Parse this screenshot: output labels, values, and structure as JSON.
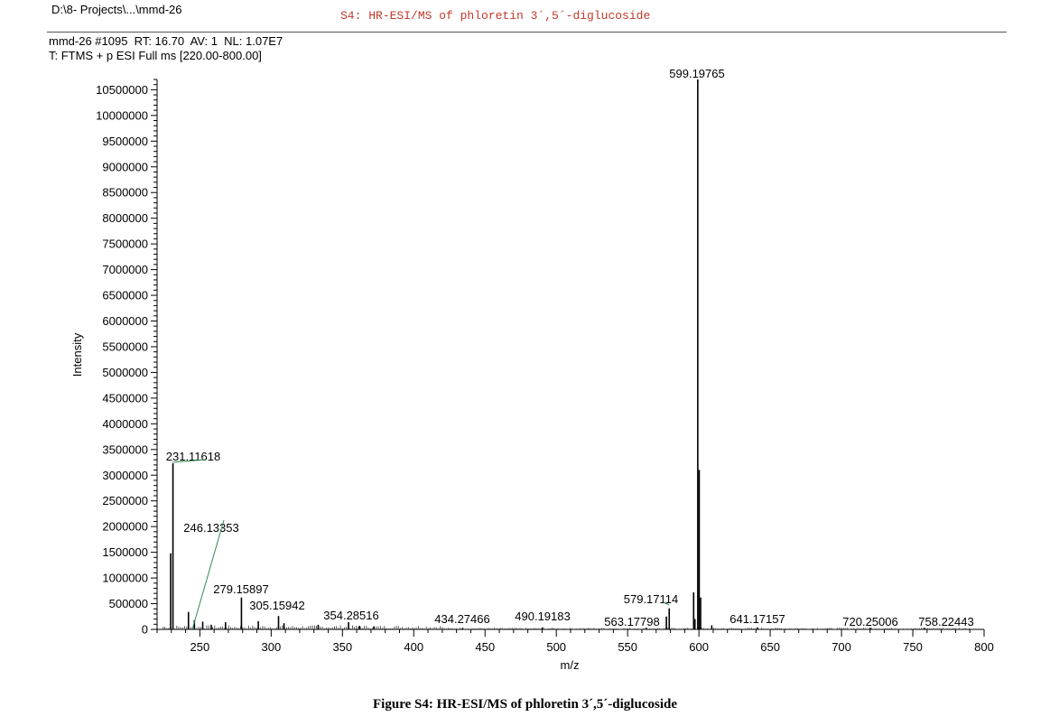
{
  "header": {
    "path": "D:\\8- Projects\\...\\mmd-26",
    "spectrum_title": "S4: HR-ESI/MS of phloretin 3´,5´-diglucoside",
    "scan_info": "mmd-26 #1095  RT: 16.70  AV: 1  NL: 1.07E7",
    "filter": "T: FTMS + p ESI Full ms [220.00-800.00]"
  },
  "caption": "Figure S4: HR-ESI/MS of phloretin 3´,5´-diglucoside",
  "chart_data": {
    "type": "bar",
    "xlabel": "m/z",
    "ylabel": "Intensity",
    "xlim": [
      220,
      800
    ],
    "ylim": [
      0,
      10700000
    ],
    "x_ticks": [
      250,
      300,
      350,
      400,
      450,
      500,
      550,
      600,
      650,
      700,
      750,
      800
    ],
    "y_ticks": [
      0,
      500000,
      1000000,
      1500000,
      2000000,
      2500000,
      3000000,
      3500000,
      4000000,
      4500000,
      5000000,
      5500000,
      6000000,
      6500000,
      7000000,
      7500000,
      8000000,
      8500000,
      9000000,
      9500000,
      10000000,
      10500000
    ],
    "peaks": [
      {
        "mz": 599.19765,
        "intensity": 10700000,
        "label": "599.19765"
      },
      {
        "mz": 600.2,
        "intensity": 3100000
      },
      {
        "mz": 601.2,
        "intensity": 620000
      },
      {
        "mz": 231.11618,
        "intensity": 3230000,
        "label": "231.11618"
      },
      {
        "mz": 229.5,
        "intensity": 1480000
      },
      {
        "mz": 246.13353,
        "intensity": 180000,
        "label": "246.13353"
      },
      {
        "mz": 242.0,
        "intensity": 340000
      },
      {
        "mz": 252.0,
        "intensity": 150000
      },
      {
        "mz": 258.0,
        "intensity": 90000
      },
      {
        "mz": 268.0,
        "intensity": 140000
      },
      {
        "mz": 279.15897,
        "intensity": 620000,
        "label": "279.15897"
      },
      {
        "mz": 291.0,
        "intensity": 160000
      },
      {
        "mz": 305.15942,
        "intensity": 260000,
        "label": "305.15942"
      },
      {
        "mz": 309.0,
        "intensity": 120000
      },
      {
        "mz": 333.0,
        "intensity": 90000
      },
      {
        "mz": 354.28516,
        "intensity": 140000,
        "label": "354.28516"
      },
      {
        "mz": 362.0,
        "intensity": 70000
      },
      {
        "mz": 372.0,
        "intensity": 60000
      },
      {
        "mz": 434.27466,
        "intensity": 30000,
        "label": "434.27466"
      },
      {
        "mz": 490.19183,
        "intensity": 40000,
        "label": "490.19183"
      },
      {
        "mz": 563.17798,
        "intensity": 30000,
        "label": "563.17798"
      },
      {
        "mz": 577.2,
        "intensity": 250000
      },
      {
        "mz": 579.17114,
        "intensity": 410000,
        "label": "579.17114"
      },
      {
        "mz": 596.3,
        "intensity": 720000
      },
      {
        "mz": 597.2,
        "intensity": 200000
      },
      {
        "mz": 609.0,
        "intensity": 80000
      },
      {
        "mz": 641.17157,
        "intensity": 40000,
        "label": "641.17157"
      },
      {
        "mz": 720.25006,
        "intensity": 30000,
        "label": "720.25006"
      },
      {
        "mz": 758.22443,
        "intensity": 30000,
        "label": "758.22443"
      }
    ],
    "colors": {
      "peak": "#000000",
      "leader": "#2e8b57",
      "title": "#c0392b"
    }
  }
}
